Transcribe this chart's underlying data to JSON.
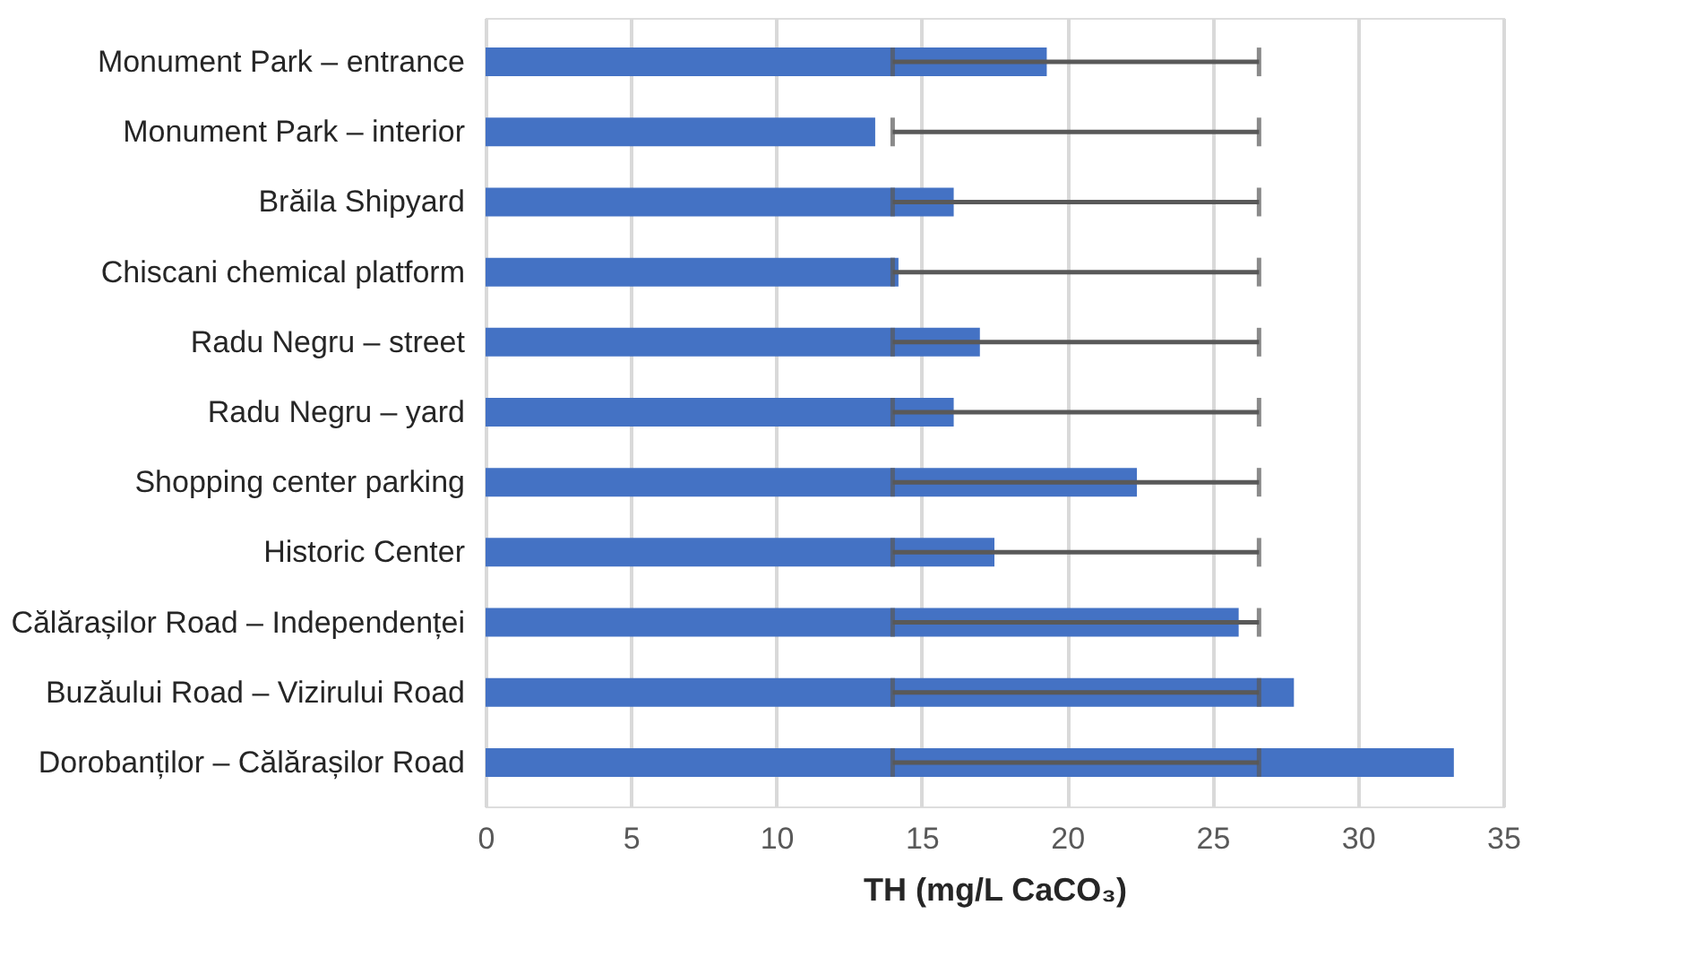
{
  "chart_data": {
    "type": "bar",
    "orientation": "horizontal",
    "xlabel": "TH (mg/L CaCO₃)",
    "categories": [
      "Monument Park – entrance",
      "Monument Park – interior",
      "Brăila Shipyard",
      "Chiscani chemical platform",
      "Radu Negru – street",
      "Radu Negru – yard",
      "Shopping center parking ",
      "Historic Center",
      "Călărașilor Road – Independenței",
      "Buzăului Road – Vizirului Road",
      "Dorobanților – Călărașilor Road"
    ],
    "values": [
      19.3,
      13.4,
      16.1,
      14.2,
      17.0,
      16.1,
      22.4,
      17.5,
      25.9,
      27.8,
      33.3
    ],
    "errors": [
      [
        14,
        26.6
      ],
      [
        14,
        26.6
      ],
      [
        14,
        26.6
      ],
      [
        14,
        26.6
      ],
      [
        14,
        26.6
      ],
      [
        14,
        26.6
      ],
      [
        14,
        26.6
      ],
      [
        14,
        26.6
      ],
      [
        14,
        26.6
      ],
      [
        14,
        26.6
      ],
      [
        14,
        26.6
      ]
    ],
    "color": "#4472c4",
    "xlim": [
      0,
      35
    ],
    "xticks": [
      0,
      5,
      10,
      15,
      20,
      25,
      30,
      35
    ],
    "grid": "x"
  }
}
